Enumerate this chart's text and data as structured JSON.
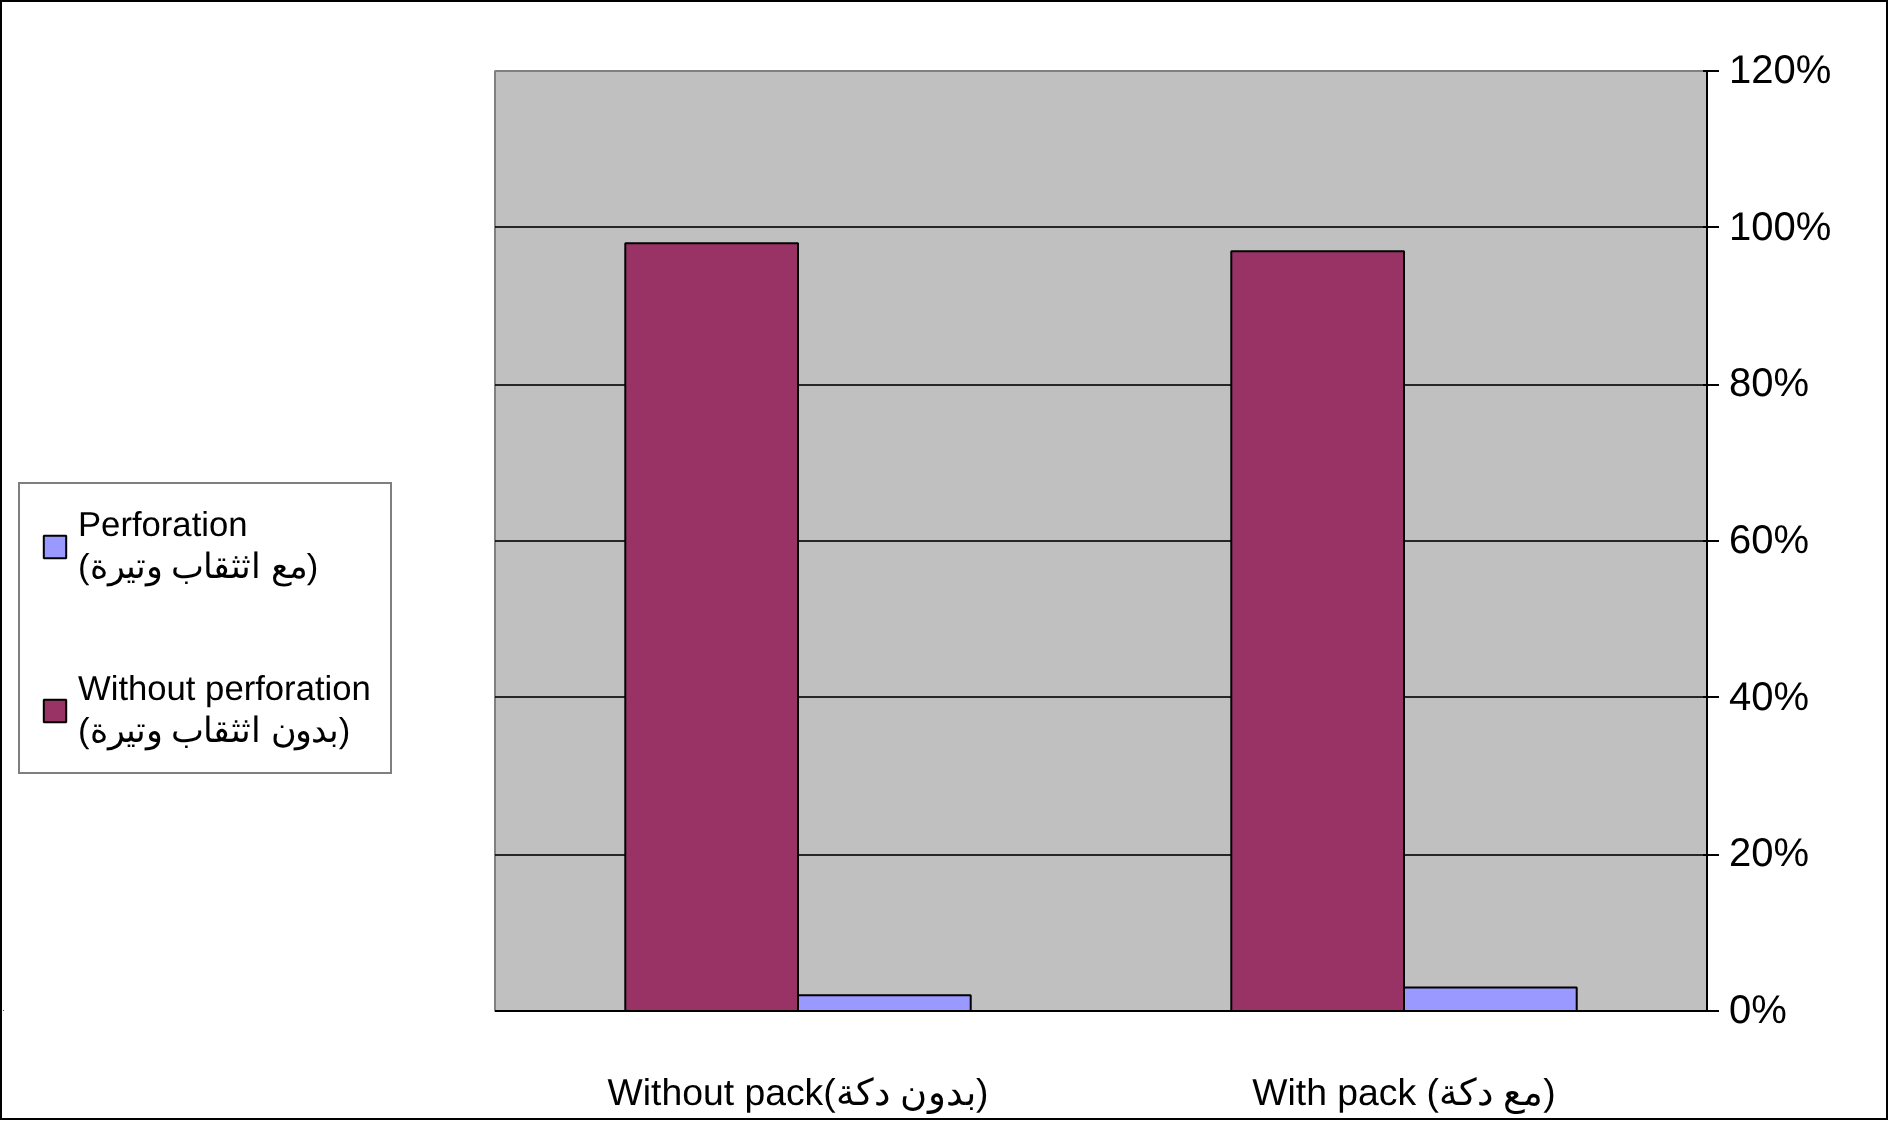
{
  "chart_data": {
    "type": "bar",
    "categories": [
      "Without pack(بدون دكة)",
      "With pack (مع دكة)"
    ],
    "series": [
      {
        "name": "Without perforation (بدون اثثقاب وتيرة)",
        "color": "#993366",
        "values": [
          98,
          97
        ]
      },
      {
        "name": "Perforation (مع اثثقاب وتيرة)",
        "color": "#9999ff",
        "values": [
          2,
          3
        ]
      }
    ],
    "ylim": [
      0,
      120
    ],
    "yticks": [
      {
        "value": 0,
        "label": "0%"
      },
      {
        "value": 20,
        "label": "20%"
      },
      {
        "value": 40,
        "label": "40%"
      },
      {
        "value": 60,
        "label": "60%"
      },
      {
        "value": 80,
        "label": "80%"
      },
      {
        "value": 100,
        "label": "100%"
      },
      {
        "value": 120,
        "label": "120%"
      }
    ],
    "grid": "y",
    "legend": "left"
  }
}
